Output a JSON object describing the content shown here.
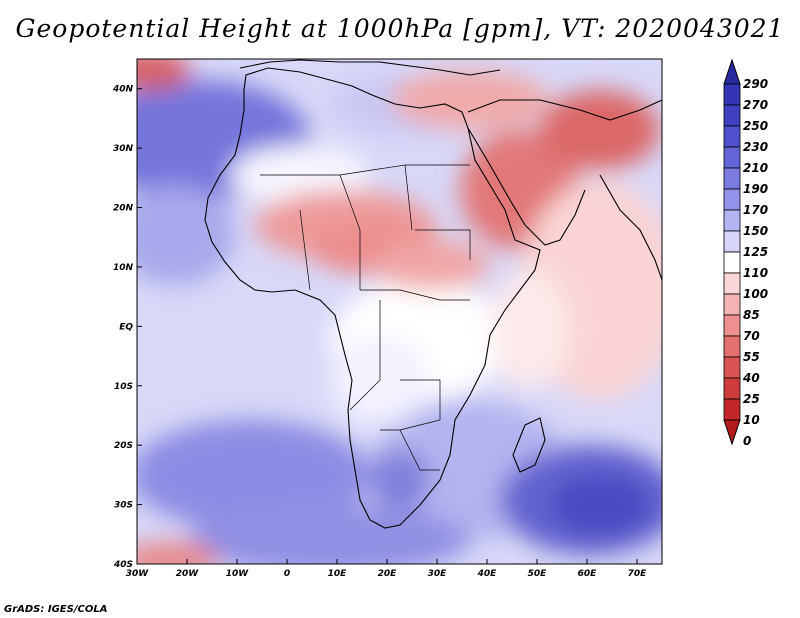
{
  "title": "Geopotential Height at 1000hPa [gpm], VT: 2020043021",
  "credit": "GrADS: IGES/COLA",
  "map": {
    "variable": "Geopotential Height",
    "level": "1000hPa",
    "units": "gpm",
    "valid_time": "2020043021",
    "lon_range": [
      -30,
      75
    ],
    "lat_range": [
      -40,
      45
    ],
    "lon_ticks": [
      "30W",
      "20W",
      "10W",
      "0",
      "10E",
      "20E",
      "30E",
      "40E",
      "50E",
      "60E",
      "70E"
    ],
    "lat_ticks": [
      "40N",
      "30N",
      "20N",
      "10N",
      "EQ",
      "10S",
      "20S",
      "30S",
      "40S"
    ]
  },
  "colorbar": {
    "levels": [
      "290",
      "270",
      "250",
      "230",
      "210",
      "190",
      "170",
      "150",
      "125",
      "110",
      "100",
      "85",
      "70",
      "55",
      "40",
      "25",
      "10",
      "0"
    ],
    "colors": [
      "#2a2aa0",
      "#3333b3",
      "#4040c0",
      "#5050cc",
      "#6464d6",
      "#7a7ae0",
      "#9292ea",
      "#b4b4f2",
      "#d6d6fa",
      "#ffffff",
      "#fad6d6",
      "#f5b4b4",
      "#ee9090",
      "#e57070",
      "#da5454",
      "#cf3c3c",
      "#c22828",
      "#b41a1a"
    ]
  }
}
